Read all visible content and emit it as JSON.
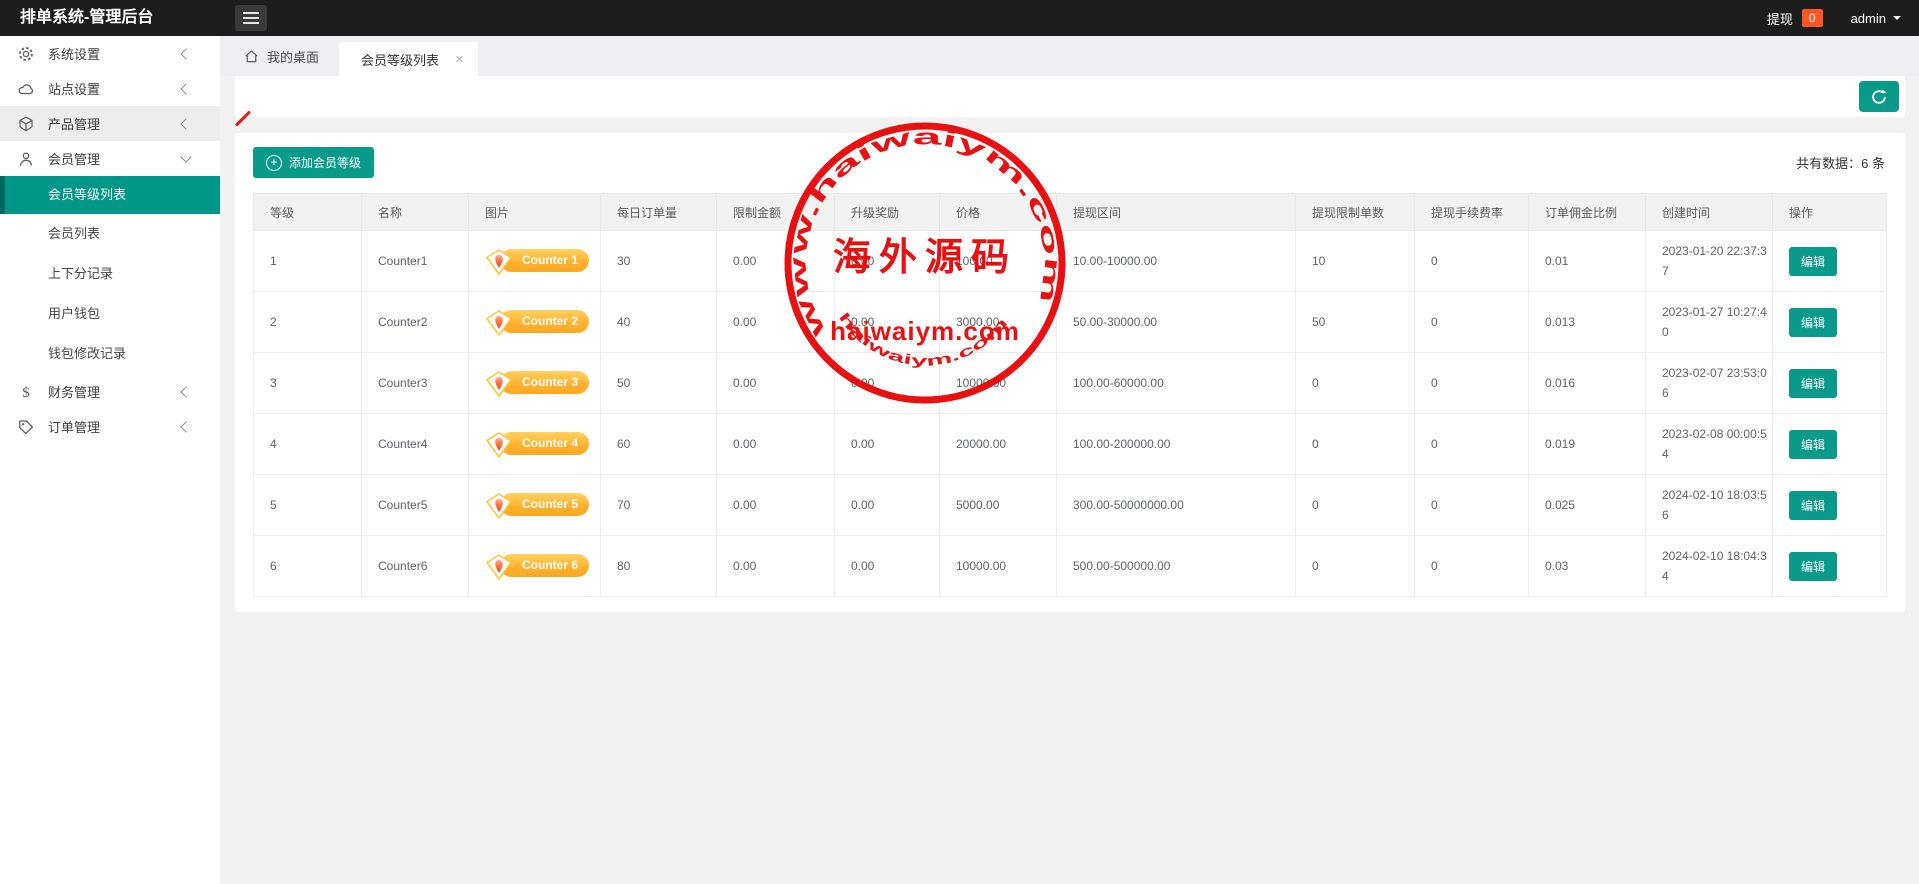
{
  "topbar": {
    "title": "排单系统-管理后台",
    "withdraw_label": "提现",
    "withdraw_count": "0",
    "username": "admin"
  },
  "tabbar": {
    "home_label": "我的桌面",
    "active_tab": "会员等级列表",
    "close": "×"
  },
  "sidebar": {
    "items": [
      {
        "type": "group",
        "key": "system-settings",
        "icon": "gear-icon",
        "label": "系统设置",
        "chevron": "collapsed"
      },
      {
        "type": "group",
        "key": "site-settings",
        "icon": "cloud-icon",
        "label": "站点设置",
        "chevron": "collapsed"
      },
      {
        "type": "group",
        "key": "product-management",
        "icon": "cube-icon",
        "label": "产品管理",
        "chevron": "collapsed",
        "hover": true
      },
      {
        "type": "group",
        "key": "member-management",
        "icon": "user-icon",
        "label": "会员管理",
        "chevron": "expanded"
      },
      {
        "type": "sub",
        "key": "member-level-list",
        "label": "会员等级列表",
        "active": true
      },
      {
        "type": "sub",
        "key": "member-list",
        "label": "会员列表"
      },
      {
        "type": "sub",
        "key": "updown-records",
        "label": "上下分记录"
      },
      {
        "type": "sub",
        "key": "user-wallet",
        "label": "用户钱包"
      },
      {
        "type": "sub",
        "key": "wallet-change-records",
        "label": "钱包修改记录"
      },
      {
        "type": "group",
        "key": "finance-management",
        "icon": "dollar-icon",
        "label": "财务管理",
        "chevron": "collapsed"
      },
      {
        "type": "group",
        "key": "order-management",
        "icon": "tag-icon",
        "label": "订单管理",
        "chevron": "collapsed"
      }
    ]
  },
  "toolbar": {
    "add_button_label": "添加会员等级",
    "total_label": "共有数据：6 条"
  },
  "table": {
    "headers": [
      "等级",
      "名称",
      "图片",
      "每日订单量",
      "限制金额",
      "升级奖励",
      "价格",
      "提现区间",
      "提现限制单数",
      "提现手续费率",
      "订单佣金比例",
      "创建时间",
      "操作"
    ],
    "edit_button_label": "编辑",
    "rows": [
      {
        "level": "1",
        "name": "Counter1",
        "badge_text": "Counter 1",
        "daily_orders": "30",
        "limit_amount": "0.00",
        "upgrade_reward": "0.00",
        "price": "100.00",
        "withdraw_range": "10.00-10000.00",
        "withdraw_limit": "10",
        "withdraw_fee": "0",
        "commission": "0.01",
        "created_at": "2023-01-20 22:37:37"
      },
      {
        "level": "2",
        "name": "Counter2",
        "badge_text": "Counter 2",
        "daily_orders": "40",
        "limit_amount": "0.00",
        "upgrade_reward": "0.00",
        "price": "3000.00",
        "withdraw_range": "50.00-30000.00",
        "withdraw_limit": "50",
        "withdraw_fee": "0",
        "commission": "0.013",
        "created_at": "2023-01-27 10:27:40"
      },
      {
        "level": "3",
        "name": "Counter3",
        "badge_text": "Counter 3",
        "daily_orders": "50",
        "limit_amount": "0.00",
        "upgrade_reward": "0.00",
        "price": "10000.00",
        "withdraw_range": "100.00-60000.00",
        "withdraw_limit": "0",
        "withdraw_fee": "0",
        "commission": "0.016",
        "created_at": "2023-02-07 23:53:06"
      },
      {
        "level": "4",
        "name": "Counter4",
        "badge_text": "Counter 4",
        "daily_orders": "60",
        "limit_amount": "0.00",
        "upgrade_reward": "0.00",
        "price": "20000.00",
        "withdraw_range": "100.00-200000.00",
        "withdraw_limit": "0",
        "withdraw_fee": "0",
        "commission": "0.019",
        "created_at": "2023-02-08 00:00:54"
      },
      {
        "level": "5",
        "name": "Counter5",
        "badge_text": "Counter 5",
        "daily_orders": "70",
        "limit_amount": "0.00",
        "upgrade_reward": "0.00",
        "price": "5000.00",
        "withdraw_range": "300.00-50000000.00",
        "withdraw_limit": "0",
        "withdraw_fee": "0",
        "commission": "0.025",
        "created_at": "2024-02-10 18:03:56"
      },
      {
        "level": "6",
        "name": "Counter6",
        "badge_text": "Counter 6",
        "daily_orders": "80",
        "limit_amount": "0.00",
        "upgrade_reward": "0.00",
        "price": "10000.00",
        "withdraw_range": "500.00-500000.00",
        "withdraw_limit": "0",
        "withdraw_fee": "0",
        "commission": "0.03",
        "created_at": "2024-02-10 18:04:34"
      }
    ]
  },
  "watermark": {
    "arc_top_text": "www.haiwaiym.com",
    "center_text": "海外源码",
    "brand_text": "haiwaiym.com",
    "arc_bottom_text": "haiwaiym.com",
    "color": "#e60000"
  },
  "colors": {
    "accent_teal": "#0a9a8a",
    "badge_orange": "#ff5722",
    "gold_badge": "#ffb02e",
    "watermark_red": "#e60000"
  }
}
